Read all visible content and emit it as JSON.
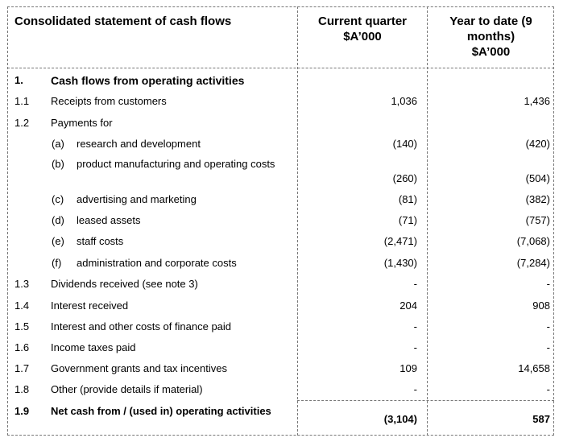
{
  "header": {
    "title": "Consolidated statement of cash flows",
    "col1_line1": "Current quarter",
    "col1_line2": "$A’000",
    "col2_line1": "Year to date (9",
    "col2_line2": "months)",
    "col2_line3": "$A’000"
  },
  "rows": [
    {
      "num": "1.",
      "label": "Cash flows from operating activities",
      "bold": true,
      "cq": "",
      "ytd": ""
    },
    {
      "num": "1.1",
      "label": "Receipts from customers",
      "cq": "1,036",
      "ytd": "1,436"
    },
    {
      "num": "1.2",
      "label": "Payments for",
      "cq": "",
      "ytd": ""
    },
    {
      "sub": "(a)",
      "label": "research and development",
      "cq": "(140)",
      "ytd": "(420)"
    },
    {
      "sub": "(b)",
      "label": "product manufacturing and operating costs",
      "cq": "(260)",
      "ytd": "(504)"
    },
    {
      "sub": "(c)",
      "label": "advertising and marketing",
      "cq": "(81)",
      "ytd": "(382)"
    },
    {
      "sub": "(d)",
      "label": "leased assets",
      "cq": "(71)",
      "ytd": "(757)"
    },
    {
      "sub": "(e)",
      "label": "staff costs",
      "cq": "(2,471)",
      "ytd": "(7,068)"
    },
    {
      "sub": "(f)",
      "label": "administration and corporate costs",
      "cq": "(1,430)",
      "ytd": "(7,284)"
    },
    {
      "num": "1.3",
      "label": "Dividends received (see note 3)",
      "cq": "-",
      "ytd": "-"
    },
    {
      "num": "1.4",
      "label": "Interest received",
      "cq": "204",
      "ytd": "908"
    },
    {
      "num": "1.5",
      "label": "Interest and other costs of finance paid",
      "cq": "-",
      "ytd": "-"
    },
    {
      "num": "1.6",
      "label": "Income taxes paid",
      "cq": "-",
      "ytd": "-"
    },
    {
      "num": "1.7",
      "label": "Government grants and tax incentives",
      "cq": "109",
      "ytd": "14,658"
    },
    {
      "num": "1.8",
      "label": "Other (provide details if material)",
      "cq": "-",
      "ytd": "-"
    },
    {
      "num": "1.9",
      "label": "Net cash from / (used in) operating activities",
      "bold": true,
      "cq": "(3,104)",
      "ytd": "587"
    }
  ]
}
